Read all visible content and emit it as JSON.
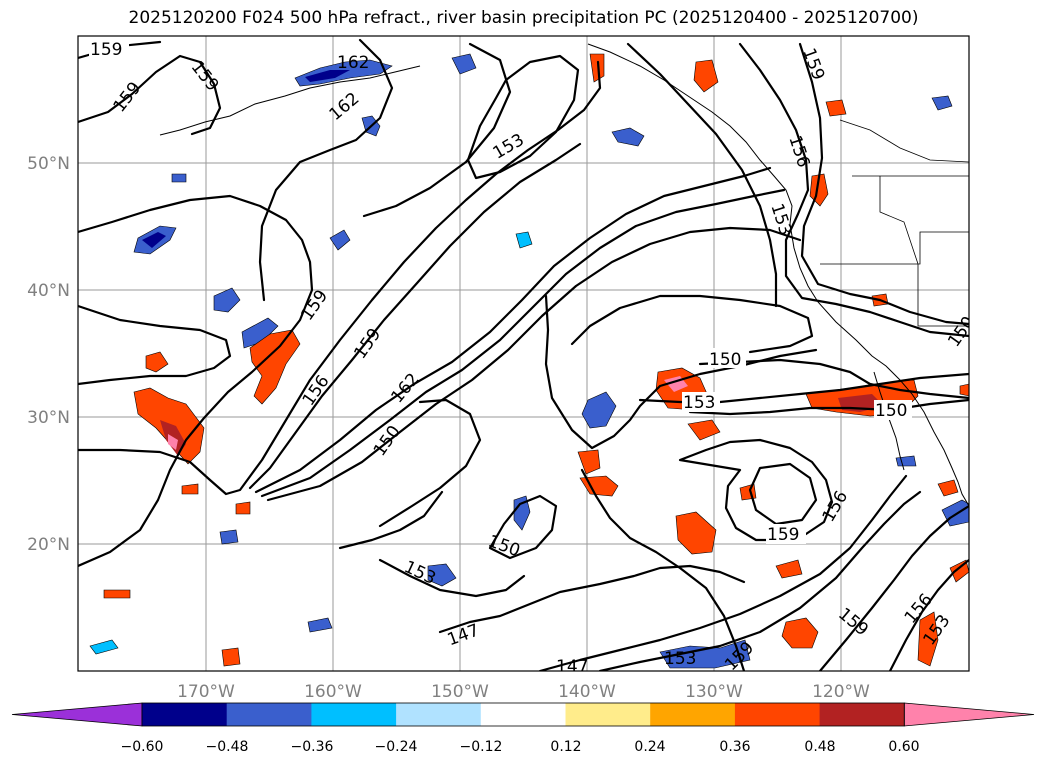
{
  "title": "2025120200 F024 500 hPa refract., river basin precipitation PC (2025120400 - 2025120700)",
  "map": {
    "lat_ticks": [
      "50°N",
      "40°N",
      "30°N",
      "20°N"
    ],
    "lon_ticks": [
      "170°W",
      "160°W",
      "150°W",
      "140°W",
      "130°W",
      "120°W"
    ],
    "contour_labels": [
      "159",
      "159",
      "159",
      "162",
      "162",
      "153",
      "159",
      "156",
      "153",
      "159",
      "159",
      "156",
      "162",
      "150",
      "150",
      "153",
      "150",
      "153",
      "150",
      "147",
      "147",
      "153",
      "159",
      "156",
      "159",
      "159",
      "156",
      "153",
      "150"
    ]
  },
  "colorbar": {
    "colors": [
      "#9b30d9",
      "#00008b",
      "#3a5fcd",
      "#00bfff",
      "#b0e2ff",
      "#ffffff",
      "#ffec8b",
      "#ffa500",
      "#ff4500",
      "#b22222",
      "#ff82ab"
    ],
    "tick_labels": [
      "−0.60",
      "−0.48",
      "−0.36",
      "−0.24",
      "−0.12",
      "0.12",
      "0.24",
      "0.36",
      "0.48",
      "0.60"
    ]
  }
}
